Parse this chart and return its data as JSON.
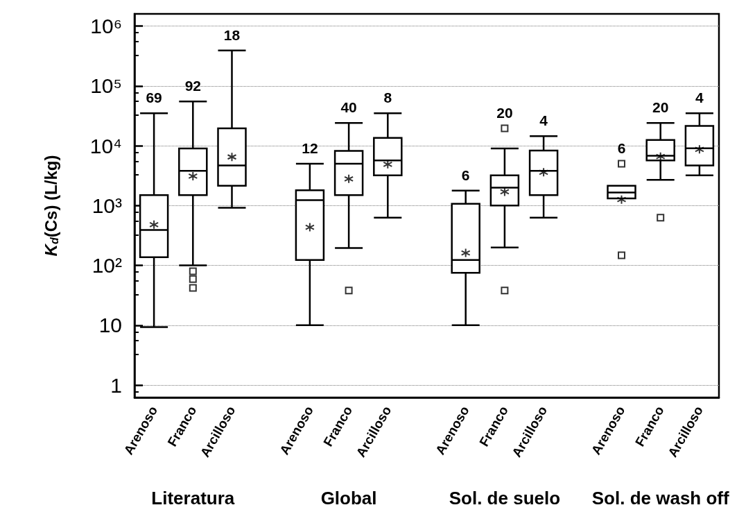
{
  "chart_data": {
    "type": "box",
    "ylabel": "K$_{d}$(Cs) (L/kg)",
    "categories": [
      "Arenoso",
      "Franco",
      "Arcilloso",
      null,
      "Arenoso",
      "Franco",
      "Arcilloso",
      null,
      "Arenoso",
      "Franco",
      "Arcilloso",
      null,
      "Arenoso",
      "Franco",
      "Arcilloso"
    ],
    "boxes": [
      {
        "low": 9.3,
        "q1": 137,
        "median": 390,
        "q3": 1500,
        "high": 35000,
        "mean": 480
      },
      {
        "low": 100,
        "q1": 1500,
        "median": 3800,
        "q3": 9000,
        "high": 55000,
        "mean": 3100,
        "outliers": [
          80,
          59,
          42
        ]
      },
      {
        "low": 920,
        "q1": 2150,
        "median": 4700,
        "q3": 19500,
        "high": 390000,
        "mean": 6500
      },
      null,
      {
        "low": 10,
        "q1": 123,
        "median": 1230,
        "q3": 1800,
        "high": 5000,
        "mean": 435
      },
      {
        "low": 195,
        "q1": 1500,
        "median": 5000,
        "q3": 8200,
        "high": 24000,
        "mean": 2800,
        "outliers": [
          38
        ]
      },
      {
        "low": 630,
        "q1": 3200,
        "median": 5700,
        "q3": 13500,
        "high": 35000,
        "mean": 4900
      },
      null,
      {
        "low": 10,
        "q1": 75,
        "median": 123,
        "q3": 1070,
        "high": 1780,
        "mean": 162
      },
      {
        "low": 200,
        "q1": 1000,
        "median": 2000,
        "q3": 3200,
        "high": 9000,
        "mean": 1700,
        "outliers": [
          19500,
          38
        ]
      },
      {
        "low": 630,
        "q1": 1500,
        "median": 3800,
        "q3": 8300,
        "high": 14500,
        "mean": 3600
      },
      null,
      {
        "low": 1320,
        "q1": 1320,
        "median": 1650,
        "q3": 2150,
        "high": 2150,
        "mean": 1260,
        "outliers": [
          5000,
          148
        ]
      },
      {
        "low": 2700,
        "q1": 5700,
        "median": 6800,
        "q3": 12500,
        "high": 24000,
        "mean": 6600,
        "outliers": [
          630
        ]
      },
      {
        "low": 3200,
        "q1": 4700,
        "median": 9100,
        "q3": 21500,
        "high": 35000,
        "mean": 8700
      }
    ],
    "annotations": [
      "Literatura",
      "Global",
      "Sol. de suelo",
      "Sol. de wash off",
      "69",
      "92",
      "18",
      "12",
      "40",
      "8",
      "6",
      "20",
      "4",
      "6",
      "20",
      "4"
    ],
    "log": "y",
    "ylim": [
      0.62,
      1600000
    ],
    "yticks": [
      1,
      10,
      {
        "value": 100,
        "label": "10²"
      },
      {
        "value": 1000,
        "label": "10³"
      },
      {
        "value": 10000,
        "label": "10⁴"
      },
      {
        "value": 100000,
        "label": "10⁵"
      },
      {
        "value": 1000000,
        "label": "10⁶"
      }
    ],
    "grid": "y",
    "legend": false
  }
}
